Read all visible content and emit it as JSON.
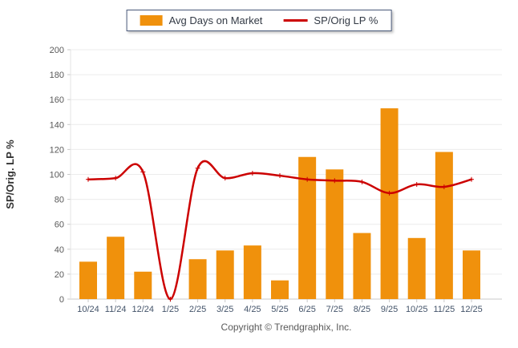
{
  "legend": {
    "items": [
      {
        "label": "Avg Days on Market",
        "type": "bar",
        "color": "#F0910C"
      },
      {
        "label": "SP/Orig LP %",
        "type": "line",
        "color": "#CC0000"
      }
    ]
  },
  "footer": {
    "copyright": "Copyright © Trendgraphix, Inc."
  },
  "chart_data": {
    "type": "combo",
    "categories": [
      "10/24",
      "11/24",
      "12/24",
      "1/25",
      "2/25",
      "3/25",
      "4/25",
      "5/25",
      "6/25",
      "7/25",
      "8/25",
      "9/25",
      "10/25",
      "11/25",
      "12/25"
    ],
    "series": [
      {
        "name": "Avg Days on Market",
        "type": "bar",
        "color": "#F0910C",
        "values": [
          30,
          50,
          22,
          0,
          32,
          39,
          43,
          15,
          114,
          104,
          53,
          153,
          49,
          118,
          39
        ]
      },
      {
        "name": "SP/Orig LP %",
        "type": "line",
        "color": "#CC0000",
        "values": [
          96,
          97,
          102,
          0,
          105,
          97,
          101,
          99,
          96,
          95,
          94,
          85,
          92,
          90,
          96
        ]
      }
    ],
    "title": "",
    "xlabel": "",
    "ylabel": "SP/Orig. LP %",
    "ylim": [
      0,
      200
    ],
    "ytick_step": 20,
    "grid": true,
    "legend_position": "top"
  }
}
